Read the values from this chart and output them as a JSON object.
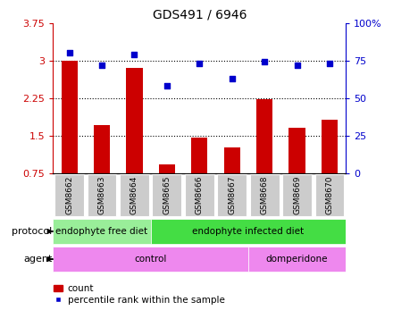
{
  "title": "GDS491 / 6946",
  "samples": [
    "GSM8662",
    "GSM8663",
    "GSM8664",
    "GSM8665",
    "GSM8666",
    "GSM8667",
    "GSM8668",
    "GSM8669",
    "GSM8670"
  ],
  "bar_values": [
    3.0,
    1.72,
    2.85,
    0.93,
    1.47,
    1.27,
    2.22,
    1.65,
    1.82
  ],
  "dot_values": [
    80,
    72,
    79,
    58,
    73,
    63,
    74,
    72,
    73
  ],
  "bar_color": "#cc0000",
  "dot_color": "#0000cc",
  "ylim_left": [
    0.75,
    3.75
  ],
  "ylim_right": [
    0,
    100
  ],
  "yticks_left": [
    0.75,
    1.5,
    2.25,
    3.0,
    3.75
  ],
  "yticks_right": [
    0,
    25,
    50,
    75,
    100
  ],
  "ytick_labels_left": [
    "0.75",
    "1.5",
    "2.25",
    "3",
    "3.75"
  ],
  "ytick_labels_right": [
    "0",
    "25",
    "50",
    "75",
    "100%"
  ],
  "hlines": [
    1.5,
    2.25,
    3.0
  ],
  "protocol_labels": [
    "endophyte free diet",
    "endophyte infected diet"
  ],
  "protocol_split": 3,
  "protocol_color_light": "#99ee99",
  "protocol_color_dark": "#44dd44",
  "agent_labels": [
    "control",
    "domperidone"
  ],
  "agent_split": 6,
  "agent_color": "#ee88ee",
  "sample_box_color": "#cccccc",
  "legend_items": [
    "count",
    "percentile rank within the sample"
  ],
  "row_label_protocol": "protocol",
  "row_label_agent": "agent"
}
